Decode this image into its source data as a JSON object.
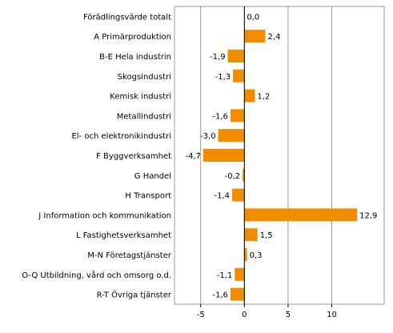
{
  "chart_data": {
    "type": "bar",
    "orientation": "horizontal",
    "categories": [
      "Förädlingsvärde totalt",
      "A Primärproduktion",
      "B-E Hela industrin",
      "Skogsindustri",
      "Kemisk industri",
      "Metallindustri",
      "El- och elektronikindustri",
      "F Byggverksamhet",
      "G Handel",
      "H Transport",
      "J Information och kommunikation",
      "L Fastighetsverksamhet",
      "M-N Företagstjänster",
      "O-Q Utbildning, vård och omsorg o.d.",
      "R-T Övriga tjänster"
    ],
    "values": [
      0.0,
      2.4,
      -1.9,
      -1.3,
      1.2,
      -1.6,
      -3.0,
      -4.7,
      -0.2,
      -1.4,
      12.9,
      1.5,
      0.3,
      -1.1,
      -1.6
    ],
    "value_labels": [
      "0,0",
      "2,4",
      "-1,9",
      "-1,3",
      "1,2",
      "-1,6",
      "-3,0",
      "-4,7",
      "-0,2",
      "-1,4",
      "12,9",
      "1,5",
      "0,3",
      "-1,1",
      "-1,6"
    ],
    "xlim": [
      -8,
      16
    ],
    "xticks": [
      -5,
      0,
      5,
      10
    ],
    "xtick_labels": [
      "-5",
      "0",
      "5",
      "10"
    ],
    "grid": "vertical",
    "bar_color": "#f08c00"
  }
}
